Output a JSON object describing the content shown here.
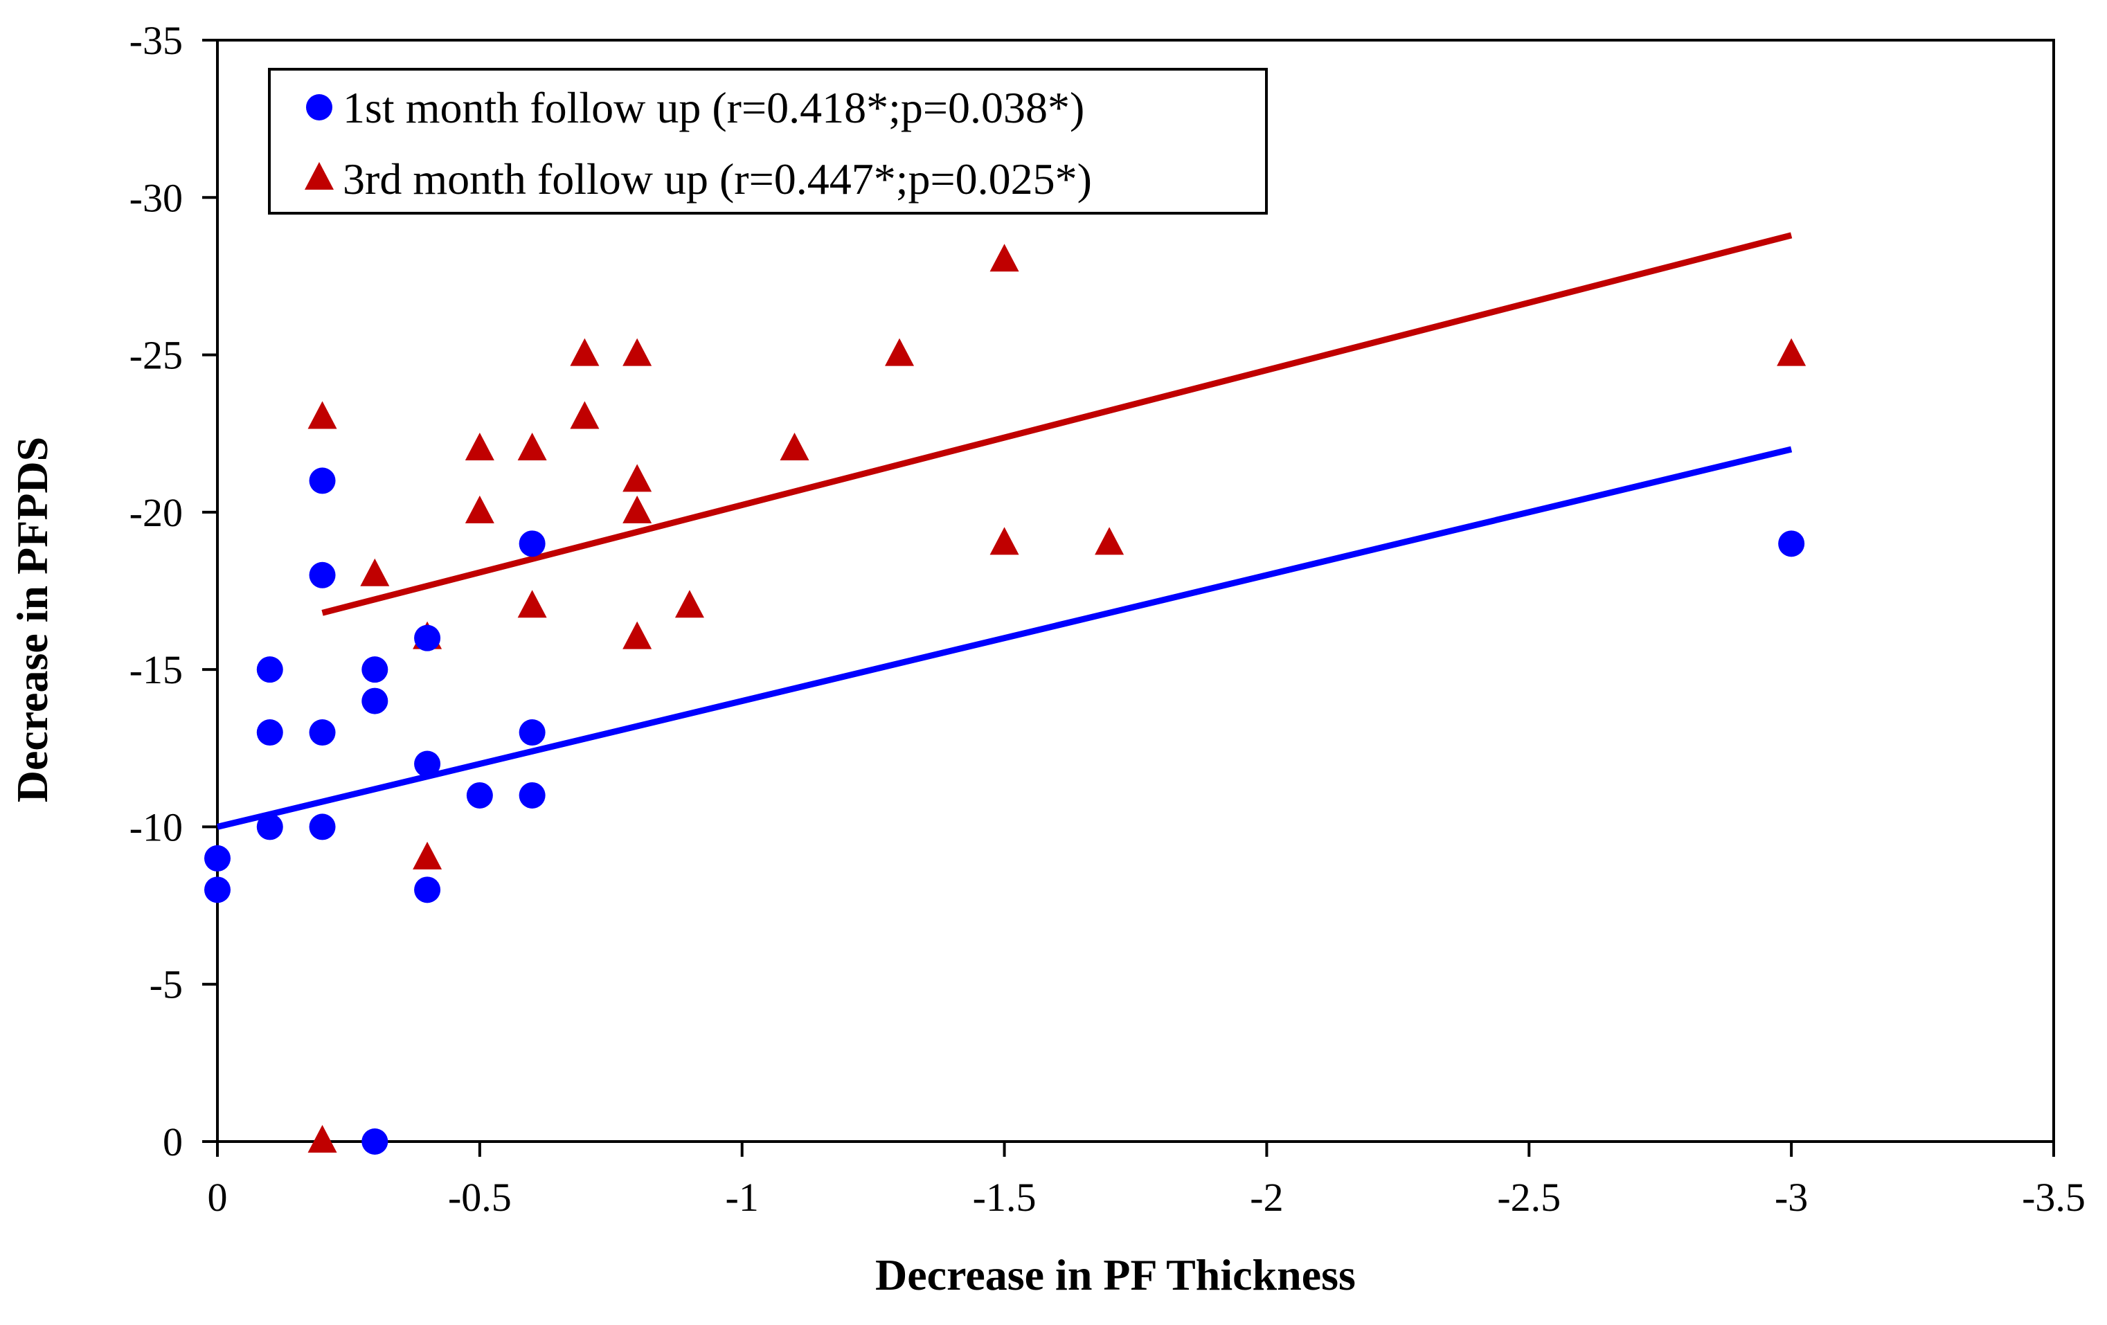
{
  "chart_data": {
    "type": "scatter",
    "xlabel": "Decrease in PF Thickness",
    "ylabel": "Decrease in PFPDS",
    "xlim": [
      0,
      -3.5
    ],
    "ylim": [
      0,
      -35
    ],
    "x_ticks": [
      "0",
      "-0.5",
      "-1",
      "-1.5",
      "-2",
      "-2.5",
      "-3",
      "-3.5"
    ],
    "x_tick_values": [
      0,
      -0.5,
      -1,
      -1.5,
      -2,
      -2.5,
      -3,
      -3.5
    ],
    "y_ticks": [
      "0",
      "-5",
      "-10",
      "-15",
      "-20",
      "-25",
      "-30",
      "-35"
    ],
    "y_tick_values": [
      0,
      -5,
      -10,
      -15,
      -20,
      -25,
      -30,
      -35
    ],
    "grid": false,
    "legend_position": "top-left",
    "series": [
      {
        "name": "1st month follow up (r=0.418*;p=0.038*)",
        "marker": "circle",
        "color": "#0000ff",
        "points": [
          [
            0,
            -9
          ],
          [
            0,
            -8
          ],
          [
            -0.1,
            -15
          ],
          [
            -0.1,
            -13
          ],
          [
            -0.1,
            -10
          ],
          [
            -0.2,
            -21
          ],
          [
            -0.2,
            -18
          ],
          [
            -0.2,
            -13
          ],
          [
            -0.2,
            -10
          ],
          [
            -0.3,
            -15
          ],
          [
            -0.3,
            -14
          ],
          [
            -0.3,
            0
          ],
          [
            -0.4,
            -16
          ],
          [
            -0.4,
            -12
          ],
          [
            -0.4,
            -8
          ],
          [
            -0.5,
            -11
          ],
          [
            -0.6,
            -19
          ],
          [
            -0.6,
            -13
          ],
          [
            -0.6,
            -11
          ],
          [
            -3,
            -19
          ]
        ],
        "trendline": {
          "x1": 0,
          "y1": -10,
          "x2": -3,
          "y2": -22,
          "color": "#0000ff"
        }
      },
      {
        "name": "3rd month follow up (r=0.447*;p=0.025*)",
        "marker": "triangle",
        "color": "#c00000",
        "points": [
          [
            -0.2,
            -23
          ],
          [
            -0.2,
            0
          ],
          [
            -0.3,
            -18
          ],
          [
            -0.4,
            -16
          ],
          [
            -0.4,
            -9
          ],
          [
            -0.5,
            -22
          ],
          [
            -0.5,
            -20
          ],
          [
            -0.6,
            -22
          ],
          [
            -0.6,
            -17
          ],
          [
            -0.7,
            -25
          ],
          [
            -0.7,
            -23
          ],
          [
            -0.8,
            -25
          ],
          [
            -0.8,
            -21
          ],
          [
            -0.8,
            -20
          ],
          [
            -0.8,
            -16
          ],
          [
            -0.9,
            -17
          ],
          [
            -1.1,
            -22
          ],
          [
            -1.3,
            -25
          ],
          [
            -1.5,
            -28
          ],
          [
            -1.5,
            -19
          ],
          [
            -1.7,
            -19
          ],
          [
            -3,
            -25
          ]
        ],
        "trendline": {
          "x1": -0.2,
          "y1": -16.8,
          "x2": -3,
          "y2": -28.8,
          "color": "#c00000"
        }
      }
    ]
  }
}
